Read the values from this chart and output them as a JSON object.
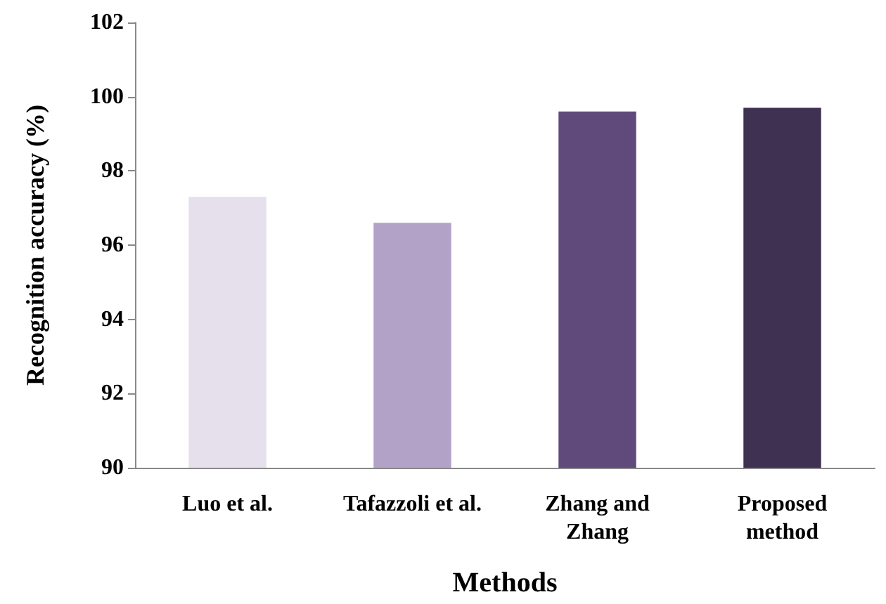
{
  "chart_data": {
    "type": "bar",
    "xlabel": "Methods",
    "ylabel": "Recognition accuracy (%)",
    "categories": [
      "Luo et al.",
      "Tafazzoli et al.",
      "Zhang and\nZhang",
      "Proposed\nmethod"
    ],
    "values": [
      97.3,
      96.6,
      99.6,
      99.7
    ],
    "colors": [
      "#e6e0ec",
      "#b3a2c7",
      "#604a7b",
      "#3f3151"
    ],
    "ylim": [
      90,
      102
    ],
    "yticks": [
      90,
      92,
      94,
      96,
      98,
      100,
      102
    ],
    "grid": false
  }
}
